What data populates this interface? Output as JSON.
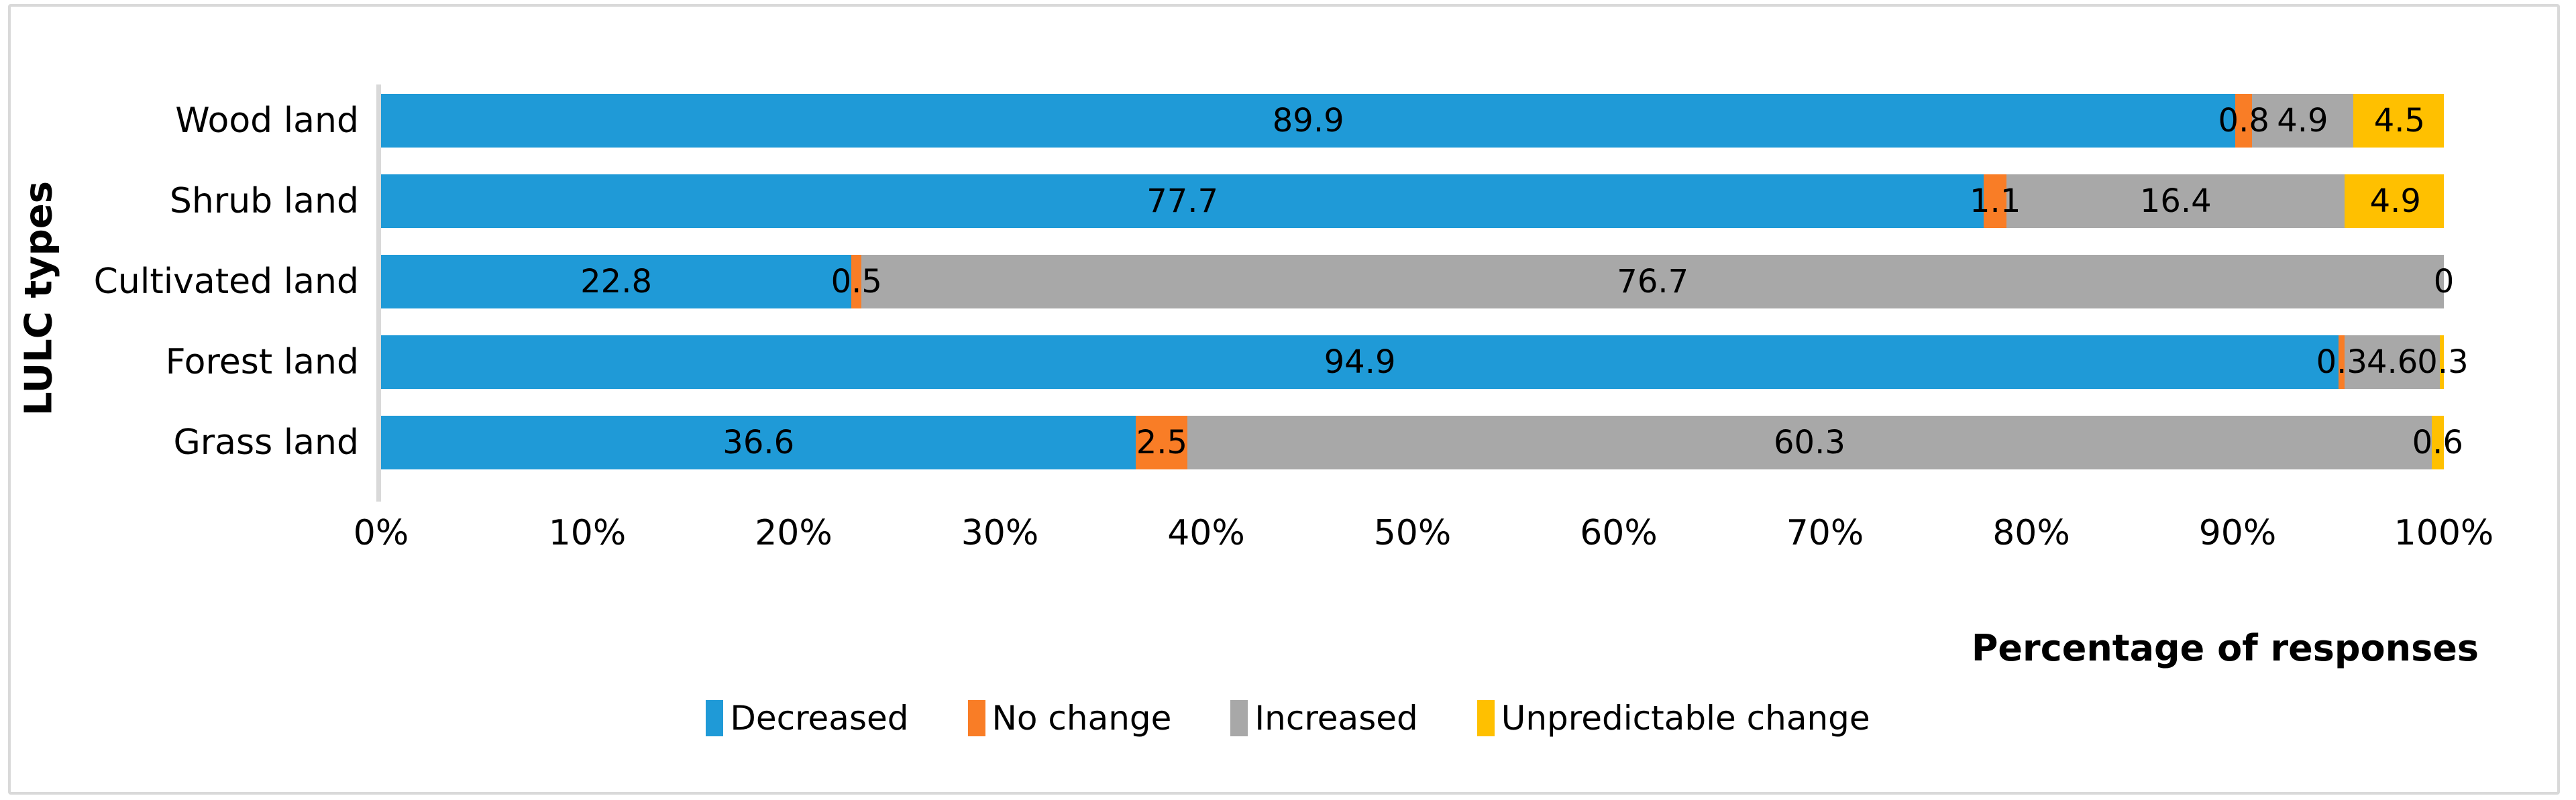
{
  "chart_data": {
    "type": "bar",
    "orientation": "horizontal",
    "stacked": true,
    "title": "",
    "xlabel": "Percentage of responses",
    "ylabel": "LULC types",
    "categories": [
      "Wood land",
      "Shrub land",
      "Cultivated land",
      "Forest land",
      "Grass land"
    ],
    "series": [
      {
        "name": "Decreased",
        "color": "#1f9ad7",
        "values": [
          89.9,
          77.7,
          22.8,
          94.9,
          36.6
        ],
        "value_labels": [
          "89.9",
          "77.7",
          "22.8",
          "94.9",
          "36.6"
        ]
      },
      {
        "name": "No change",
        "color": "#f97d26",
        "values": [
          0.8,
          1.1,
          0.5,
          0.3,
          2.5
        ],
        "value_labels": [
          "0.8",
          "1.1",
          "0.5",
          "0.3",
          "2.5"
        ]
      },
      {
        "name": "Increased",
        "color": "#a8a8a8",
        "values": [
          4.9,
          16.4,
          76.7,
          4.6,
          60.3
        ],
        "value_labels": [
          "4.9",
          "16.4",
          "76.7",
          "4.6",
          "60.3"
        ]
      },
      {
        "name": "Unpredictable change",
        "color": "#ffc000",
        "values": [
          4.5,
          4.9,
          0,
          0.3,
          0.6
        ],
        "value_labels": [
          "4.5",
          "4.9",
          "0",
          "0.3",
          "0.6"
        ]
      }
    ],
    "x_ticks": [
      "0%",
      "10%",
      "20%",
      "30%",
      "40%",
      "50%",
      "60%",
      "70%",
      "80%",
      "90%",
      "100%"
    ],
    "xlim": [
      0,
      100
    ],
    "grid": false,
    "data_labels": true,
    "legend_position": "bottom-center"
  },
  "style_colors": {
    "axis_line": "#d9d9d9",
    "figure_border": "#d9d9d9",
    "label_text": "#000000",
    "background": "#ffffff"
  }
}
